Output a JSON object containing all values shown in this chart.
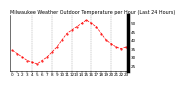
{
  "title": "Milwaukee Weather Outdoor Temperature per Hour (Last 24 Hours)",
  "x_values": [
    0,
    1,
    2,
    3,
    4,
    5,
    6,
    7,
    8,
    9,
    10,
    11,
    12,
    13,
    14,
    15,
    16,
    17,
    18,
    19,
    20,
    21,
    22,
    23
  ],
  "y_values": [
    34,
    32,
    30,
    28,
    27,
    26,
    28,
    30,
    33,
    36,
    40,
    44,
    46,
    48,
    50,
    52,
    50,
    48,
    44,
    40,
    38,
    36,
    35,
    36
  ],
  "line_color": "#ff0000",
  "marker": ".",
  "linestyle": "--",
  "bg_color": "#ffffff",
  "ylabel_values": [
    25,
    30,
    35,
    40,
    45,
    50
  ],
  "ylim": [
    22,
    55
  ],
  "xlim": [
    -0.5,
    23.5
  ],
  "grid_color": "#999999",
  "tick_label_fontsize": 3.0,
  "title_fontsize": 3.5,
  "right_bar_color": "#000000",
  "line_width": 0.5,
  "marker_size": 1.0,
  "grid_x_positions": [
    4,
    8,
    12,
    16,
    20
  ]
}
